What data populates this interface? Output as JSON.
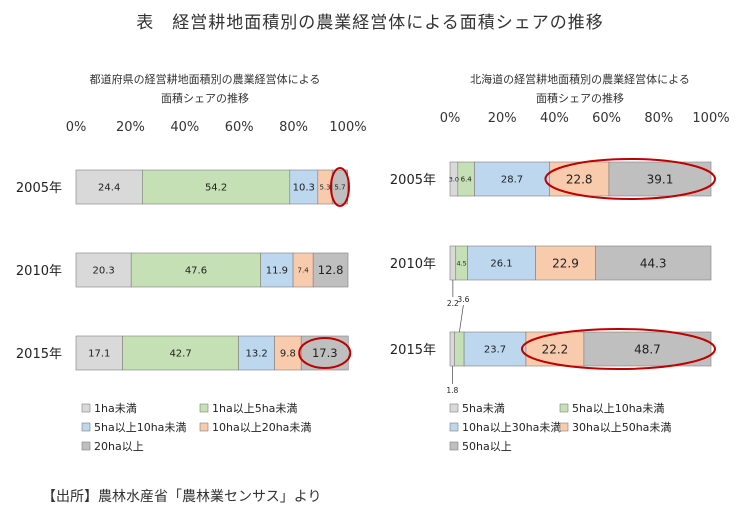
{
  "page": {
    "title": "表　経営耕地面積別の農業経営体による面積シェアの推移",
    "source": "【出所】農林水産省「農林業センサス」より"
  },
  "chart_data": [
    {
      "type": "bar",
      "orientation": "horizontal-stacked-100",
      "title_lines": [
        "都道府県の経営耕地面積別の農業経営体による",
        "面積シェアの推移"
      ],
      "xlim": [
        0,
        100
      ],
      "xticks": [
        "0%",
        "20%",
        "40%",
        "60%",
        "80%",
        "100%"
      ],
      "tick_position": "top",
      "categories": [
        "2005年",
        "2010年",
        "2015年"
      ],
      "series": [
        {
          "name": "1ha未満",
          "color": "#d9d9d9",
          "values": [
            24.4,
            20.3,
            17.1
          ],
          "labels": [
            "24.4",
            "20.3",
            "17.1"
          ]
        },
        {
          "name": "1ha以上5ha未満",
          "color": "#c5e0b4",
          "values": [
            54.2,
            47.6,
            42.7
          ],
          "labels": [
            "54.2",
            "47.6",
            "42.7"
          ]
        },
        {
          "name": "5ha以上10ha未満",
          "color": "#bdd7ee",
          "values": [
            10.3,
            11.9,
            13.2
          ],
          "labels": [
            "10.3",
            "11.9",
            "13.2"
          ]
        },
        {
          "name": "10ha以上20ha未満",
          "color": "#f8cbad",
          "values": [
            5.3,
            7.4,
            9.8
          ],
          "labels": [
            "5.3",
            "7.4",
            "9.8"
          ]
        },
        {
          "name": "20ha以上",
          "color": "#bfbfbf",
          "values": [
            5.7,
            12.8,
            17.3
          ],
          "labels": [
            "5.7",
            "12.8",
            "17.3"
          ]
        }
      ],
      "highlights": [
        {
          "category": "2005年",
          "series": "20ha以上"
        },
        {
          "category": "2015年",
          "series": "20ha以上"
        }
      ],
      "legend": {
        "placement": "bottom",
        "columns": 2
      },
      "highlight_color": "#c00000"
    },
    {
      "type": "bar",
      "orientation": "horizontal-stacked-100",
      "title_lines": [
        "北海道の経営耕地面積別の農業経営体による",
        "面積シェアの推移"
      ],
      "xlim": [
        0,
        100
      ],
      "xticks": [
        "0%",
        "20%",
        "40%",
        "60%",
        "80%",
        "100%"
      ],
      "tick_position": "top",
      "categories": [
        "2005年",
        "2010年",
        "2015年"
      ],
      "series": [
        {
          "name": "5ha未満",
          "color": "#d9d9d9",
          "values": [
            3.0,
            2.2,
            1.8
          ],
          "labels": [
            "3.0",
            "2.2",
            "1.8"
          ]
        },
        {
          "name": "5ha以上10ha未満",
          "color": "#c5e0b4",
          "values": [
            6.4,
            4.5,
            3.6
          ],
          "labels": [
            "6.4",
            "4.5",
            "3.6"
          ]
        },
        {
          "name": "10ha以上30ha未満",
          "color": "#bdd7ee",
          "values": [
            28.7,
            26.1,
            23.7
          ],
          "labels": [
            "28.7",
            "26.1",
            "23.7"
          ]
        },
        {
          "name": "30ha以上50ha未満",
          "color": "#f8cbad",
          "values": [
            22.8,
            22.9,
            22.2
          ],
          "labels": [
            "22.8",
            "22.9",
            "22.2"
          ]
        },
        {
          "name": "50ha以上",
          "color": "#bfbfbf",
          "values": [
            39.1,
            44.3,
            48.7
          ],
          "labels": [
            "39.1",
            "44.3",
            "48.7"
          ]
        }
      ],
      "highlights": [
        {
          "category": "2005年",
          "series": [
            "30ha以上50ha未満",
            "50ha以上"
          ]
        },
        {
          "category": "2015年",
          "series": [
            "30ha以上50ha未満",
            "50ha以上"
          ]
        }
      ],
      "legend": {
        "placement": "bottom",
        "columns": 2
      },
      "highlight_color": "#c00000"
    }
  ]
}
